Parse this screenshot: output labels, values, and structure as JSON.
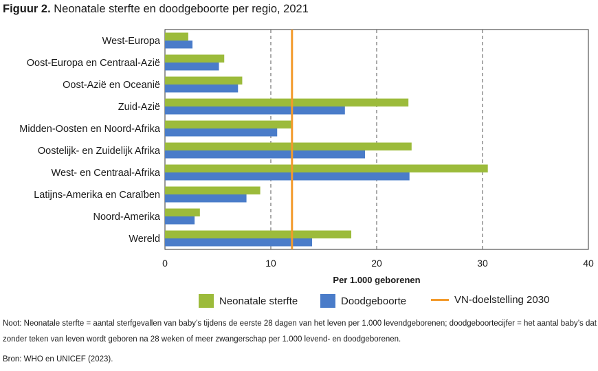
{
  "figure": {
    "label": "Figuur 2.",
    "title": "Neonatale sterfte en doodgeboorte per regio, 2021"
  },
  "chart_data": {
    "type": "bar",
    "orientation": "horizontal",
    "categories": [
      "West-Europa",
      "Oost-Europa en Centraal-Azië",
      "Oost-Azië en Oceanië",
      "Zuid-Azië",
      "Midden-Oosten en Noord-Afrika",
      "Oostelijk- en Zuidelijk Afrika",
      "West- en Centraal-Afrika",
      "Latijns-Amerika en Caraïben",
      "Noord-Amerika",
      "Wereld"
    ],
    "series": [
      {
        "name": "Neonatale sterfte",
        "color": "#9cbb3b",
        "values": [
          2.2,
          5.6,
          7.3,
          23.0,
          12.0,
          23.3,
          30.5,
          9.0,
          3.3,
          17.6
        ]
      },
      {
        "name": "Doodgeboorte",
        "color": "#4a7cc9",
        "values": [
          2.6,
          5.1,
          6.9,
          17.0,
          10.6,
          18.9,
          23.1,
          7.7,
          2.8,
          13.9
        ]
      }
    ],
    "reference_line": {
      "name": "VN-doelstelling 2030",
      "value": 12,
      "color": "#f39a2b"
    },
    "xlim": [
      0,
      40
    ],
    "xticks": [
      0,
      10,
      20,
      30,
      40
    ],
    "xlabel": "Per 1.000 geborenen",
    "ylabel": "",
    "grid": "vertical dashed",
    "legend_position": "bottom"
  },
  "note": "Noot: Neonatale sterfte = aantal sterfgevallen van baby’s tijdens de eerste 28 dagen van het leven per 1.000 levendgeborenen; doodgeboortecijfer = het aantal baby’s dat zonder teken van leven wordt geboren na 28 weken of meer zwangerschap per 1.000 levend- en doodgeborenen.",
  "source": "Bron: WHO en UNICEF (2023)."
}
